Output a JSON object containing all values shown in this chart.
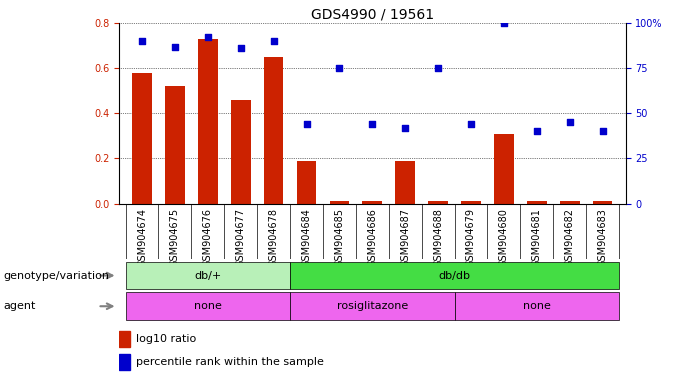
{
  "title": "GDS4990 / 19561",
  "samples": [
    "GSM904674",
    "GSM904675",
    "GSM904676",
    "GSM904677",
    "GSM904678",
    "GSM904684",
    "GSM904685",
    "GSM904686",
    "GSM904687",
    "GSM904688",
    "GSM904679",
    "GSM904680",
    "GSM904681",
    "GSM904682",
    "GSM904683"
  ],
  "log10_ratio": [
    0.58,
    0.52,
    0.73,
    0.46,
    0.65,
    0.19,
    0.01,
    0.01,
    0.19,
    0.01,
    0.01,
    0.31,
    0.01,
    0.01,
    0.01
  ],
  "percentile_rank": [
    90,
    87,
    92,
    86,
    90,
    44,
    75,
    44,
    42,
    75,
    44,
    100,
    40,
    45,
    40
  ],
  "bar_color": "#cc2200",
  "dot_color": "#0000cc",
  "genotype_groups": [
    {
      "label": "db/+",
      "start": 0,
      "end": 5,
      "color": "#b8f0b8"
    },
    {
      "label": "db/db",
      "start": 5,
      "end": 15,
      "color": "#44dd44"
    }
  ],
  "agent_groups": [
    {
      "label": "none",
      "start": 0,
      "end": 5,
      "color": "#ee66ee"
    },
    {
      "label": "rosiglitazone",
      "start": 5,
      "end": 10,
      "color": "#ee66ee"
    },
    {
      "label": "none",
      "start": 10,
      "end": 15,
      "color": "#ee66ee"
    }
  ],
  "ylim_left": [
    0,
    0.8
  ],
  "ylim_right": [
    0,
    100
  ],
  "yticks_left": [
    0,
    0.2,
    0.4,
    0.6,
    0.8
  ],
  "yticks_right": [
    0,
    25,
    50,
    75,
    100
  ],
  "legend_bar_label": "log10 ratio",
  "legend_dot_label": "percentile rank within the sample",
  "title_fontsize": 10,
  "tick_fontsize": 7,
  "label_fontsize": 8,
  "row_label_fontsize": 8
}
